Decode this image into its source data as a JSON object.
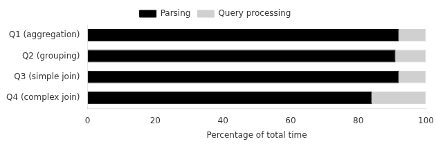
{
  "chart_data": {
    "type": "bar",
    "orientation": "horizontal",
    "stacked": true,
    "categories": [
      "Q1 (aggregation)",
      "Q2 (grouping)",
      "Q3 (simple join)",
      "Q4 (complex join)"
    ],
    "series": [
      {
        "name": "Parsing",
        "color": "#000000",
        "values": [
          92,
          91,
          92,
          84
        ]
      },
      {
        "name": "Query processing",
        "color": "#d0d0d0",
        "values": [
          8,
          9,
          8,
          16
        ]
      }
    ],
    "xlabel": "Percentage of total time",
    "xlim": [
      0,
      100
    ],
    "xticks": [
      0,
      20,
      40,
      60,
      80,
      100
    ],
    "grid": false,
    "legend": "top"
  }
}
